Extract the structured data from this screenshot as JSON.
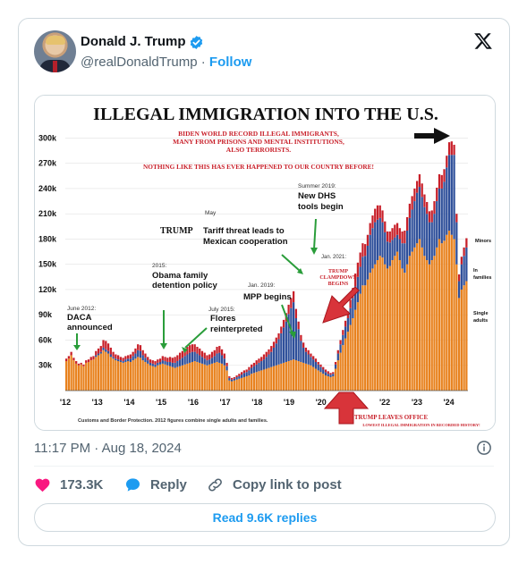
{
  "author": {
    "name": "Donald J. Trump",
    "handle": "@realDonaldTrump",
    "separator": "·",
    "follow_label": "Follow"
  },
  "meta": {
    "timestamp": "11:17 PM · Aug 18, 2024"
  },
  "actions": {
    "likes": "173.3K",
    "reply_label": "Reply",
    "copy_label": "Copy link to post",
    "read_replies_label": "Read 9.6K replies"
  },
  "colors": {
    "like": "#f91880",
    "accent": "#1d9bf0",
    "single_adults": "#e8821e",
    "families": "#2e4f9a",
    "minors": "#c8202a"
  },
  "chart_data": {
    "type": "bar",
    "title": "ILLEGAL IMMIGRATION INTO THE U.S.",
    "subtitle": [
      "BIDEN WORLD RECORD ILLEGAL IMMIGRANTS,",
      "MANY FROM PRISONS AND MENTAL INSTITUTIONS,",
      "ALSO TERRORISTS."
    ],
    "subtitle2": "NOTHING LIKE THIS HAS EVER HAPPENED TO OUR COUNTRY BEFORE!",
    "y_ticks": [
      "30k",
      "60k",
      "90k",
      "120k",
      "150k",
      "180k",
      "210k",
      "240k",
      "270k",
      "300k"
    ],
    "x_ticks": [
      "'12",
      "'13",
      "'14",
      "'15",
      "'16",
      "'17",
      "'18",
      "'19",
      "'20",
      "'21",
      "'22",
      "'23",
      "'24"
    ],
    "ylim": [
      0,
      310000
    ],
    "legend": [
      "Minors",
      "In families",
      "Single adults"
    ],
    "source": "Customs and Border Protection. 2012 figures combine single adults and families.",
    "annotations": {
      "daca_date": "June 2012:",
      "daca": [
        "DACA",
        "announced"
      ],
      "obama_date": "2015:",
      "obama": [
        "Obama family",
        "detention policy"
      ],
      "flores_date": "July 2015:",
      "flores": [
        "Flores",
        "reinterpreted"
      ],
      "tariff_date": "May",
      "tariff_bold": "TRUMP",
      "tariff": [
        "Tariff threat leads to",
        "Mexican cooperation"
      ],
      "mpp_date": "Jan. 2019:",
      "mpp": "MPP begins",
      "dhs_date": "Summer 2019:",
      "dhs": [
        "New DHS",
        "tools begin"
      ],
      "clamp_date": "Jan. 2021:",
      "clamp": [
        "TRUMP",
        "CLAMPDOWN",
        "BEGINS"
      ],
      "leaves": "TRUMP LEAVES OFFICE",
      "lowest": "LOWEST ILLEGAL IMMIGRATION IN RECORDED HISTORY!"
    },
    "series": [
      {
        "name": "Single adults",
        "values": [
          35000,
          38000,
          42000,
          36000,
          32000,
          30000,
          31000,
          29000,
          33000,
          34000,
          36000,
          37000,
          40000,
          42000,
          44000,
          48000,
          46000,
          44000,
          40000,
          38000,
          36000,
          35000,
          34000,
          33000,
          34000,
          35000,
          34000,
          36000,
          38000,
          40000,
          39000,
          36000,
          34000,
          32000,
          30000,
          29000,
          28000,
          30000,
          31000,
          32000,
          31000,
          30000,
          29000,
          28000,
          27000,
          28000,
          29000,
          30000,
          31000,
          32000,
          33000,
          34000,
          35000,
          34000,
          33000,
          32000,
          31000,
          30000,
          31000,
          32000,
          33000,
          34000,
          33000,
          32000,
          30000,
          24000,
          12000,
          11000,
          12000,
          13000,
          14000,
          15000,
          16000,
          17000,
          18000,
          20000,
          21000,
          22000,
          23000,
          24000,
          25000,
          26000,
          27000,
          28000,
          29000,
          30000,
          31000,
          32000,
          33000,
          34000,
          35000,
          36000,
          37000,
          36000,
          35000,
          34000,
          33000,
          32000,
          31000,
          30000,
          28000,
          26000,
          24000,
          22000,
          20000,
          18000,
          17000,
          16000,
          17000,
          26000,
          36000,
          45000,
          54000,
          62000,
          70000,
          78000,
          86000,
          96000,
          105000,
          115000,
          125000,
          125000,
          132000,
          140000,
          145000,
          150000,
          155000,
          160000,
          158000,
          150000,
          145000,
          148000,
          155000,
          160000,
          165000,
          155000,
          145000,
          140000,
          150000,
          160000,
          165000,
          170000,
          175000,
          180000,
          170000,
          160000,
          155000,
          150000,
          155000,
          160000,
          170000,
          180000,
          175000,
          178000,
          185000,
          190000,
          185000,
          180000,
          150000,
          110000,
          120000,
          125000,
          130000
        ]
      },
      {
        "name": "In families",
        "values": [
          0,
          0,
          0,
          0,
          0,
          0,
          0,
          0,
          0,
          0,
          0,
          0,
          2000,
          2000,
          2000,
          3000,
          3000,
          3000,
          3000,
          2000,
          2000,
          2000,
          2000,
          2000,
          3000,
          3000,
          4000,
          5000,
          6000,
          8000,
          8000,
          6000,
          5000,
          4000,
          3000,
          3000,
          3000,
          3000,
          3000,
          4000,
          4000,
          4000,
          5000,
          5000,
          6000,
          7000,
          8000,
          9000,
          10000,
          11000,
          12000,
          12000,
          11000,
          10000,
          9000,
          8000,
          7000,
          6000,
          6000,
          7000,
          8000,
          10000,
          12000,
          10000,
          8000,
          5000,
          3000,
          2000,
          2000,
          3000,
          3000,
          4000,
          5000,
          5000,
          6000,
          7000,
          8000,
          9000,
          10000,
          11000,
          12000,
          14000,
          16000,
          18000,
          22000,
          26000,
          30000,
          36000,
          42000,
          48000,
          56000,
          62000,
          68000,
          50000,
          38000,
          25000,
          18000,
          14000,
          12000,
          10000,
          9000,
          8000,
          7000,
          6000,
          5000,
          4000,
          3000,
          3000,
          3000,
          5000,
          8000,
          10000,
          12000,
          14000,
          16000,
          20000,
          24000,
          28000,
          30000,
          32000,
          34000,
          35000,
          40000,
          45000,
          48000,
          50000,
          48000,
          45000,
          42000,
          38000,
          32000,
          28000,
          24000,
          22000,
          20000,
          25000,
          30000,
          35000,
          40000,
          45000,
          50000,
          55000,
          60000,
          62000,
          60000,
          58000,
          55000,
          50000,
          45000,
          50000,
          55000,
          60000,
          65000,
          70000,
          80000,
          90000,
          95000,
          100000,
          50000,
          20000,
          30000,
          35000,
          40000
        ]
      },
      {
        "name": "Minors",
        "values": [
          3000,
          3000,
          4000,
          3000,
          3000,
          2000,
          2000,
          2000,
          3000,
          3000,
          4000,
          4000,
          5000,
          6000,
          7000,
          9000,
          10000,
          9000,
          8000,
          6000,
          5000,
          5000,
          4000,
          4000,
          4000,
          4000,
          5000,
          5000,
          6000,
          7000,
          7000,
          6000,
          5000,
          4000,
          4000,
          4000,
          4000,
          4000,
          4000,
          5000,
          5000,
          5000,
          6000,
          6000,
          7000,
          7000,
          8000,
          8000,
          8000,
          9000,
          9000,
          9000,
          9000,
          8000,
          8000,
          7000,
          7000,
          6000,
          6000,
          7000,
          7000,
          8000,
          8000,
          7000,
          6000,
          4000,
          2000,
          2000,
          2000,
          2000,
          3000,
          3000,
          3000,
          3000,
          4000,
          4000,
          4000,
          5000,
          5000,
          5000,
          6000,
          6000,
          6000,
          7000,
          7000,
          7000,
          7000,
          8000,
          9000,
          10000,
          11000,
          12000,
          13000,
          11000,
          9000,
          7000,
          6000,
          5000,
          5000,
          4000,
          4000,
          4000,
          3000,
          3000,
          3000,
          3000,
          3000,
          2000,
          2000,
          3000,
          4000,
          5000,
          6000,
          7000,
          8000,
          10000,
          12000,
          15000,
          17000,
          17000,
          16000,
          14000,
          13000,
          14000,
          15000,
          16000,
          17000,
          15000,
          14000,
          13000,
          12000,
          13000,
          14000,
          15000,
          14000,
          13000,
          14000,
          15000,
          16000,
          17000,
          16000,
          15000,
          14000,
          15000,
          16000,
          15000,
          14000,
          13000,
          14000,
          15000,
          16000,
          17000,
          16000,
          15000,
          14000,
          15000,
          16000,
          12000,
          10000,
          8000,
          9000,
          10000,
          11000
        ]
      }
    ]
  }
}
